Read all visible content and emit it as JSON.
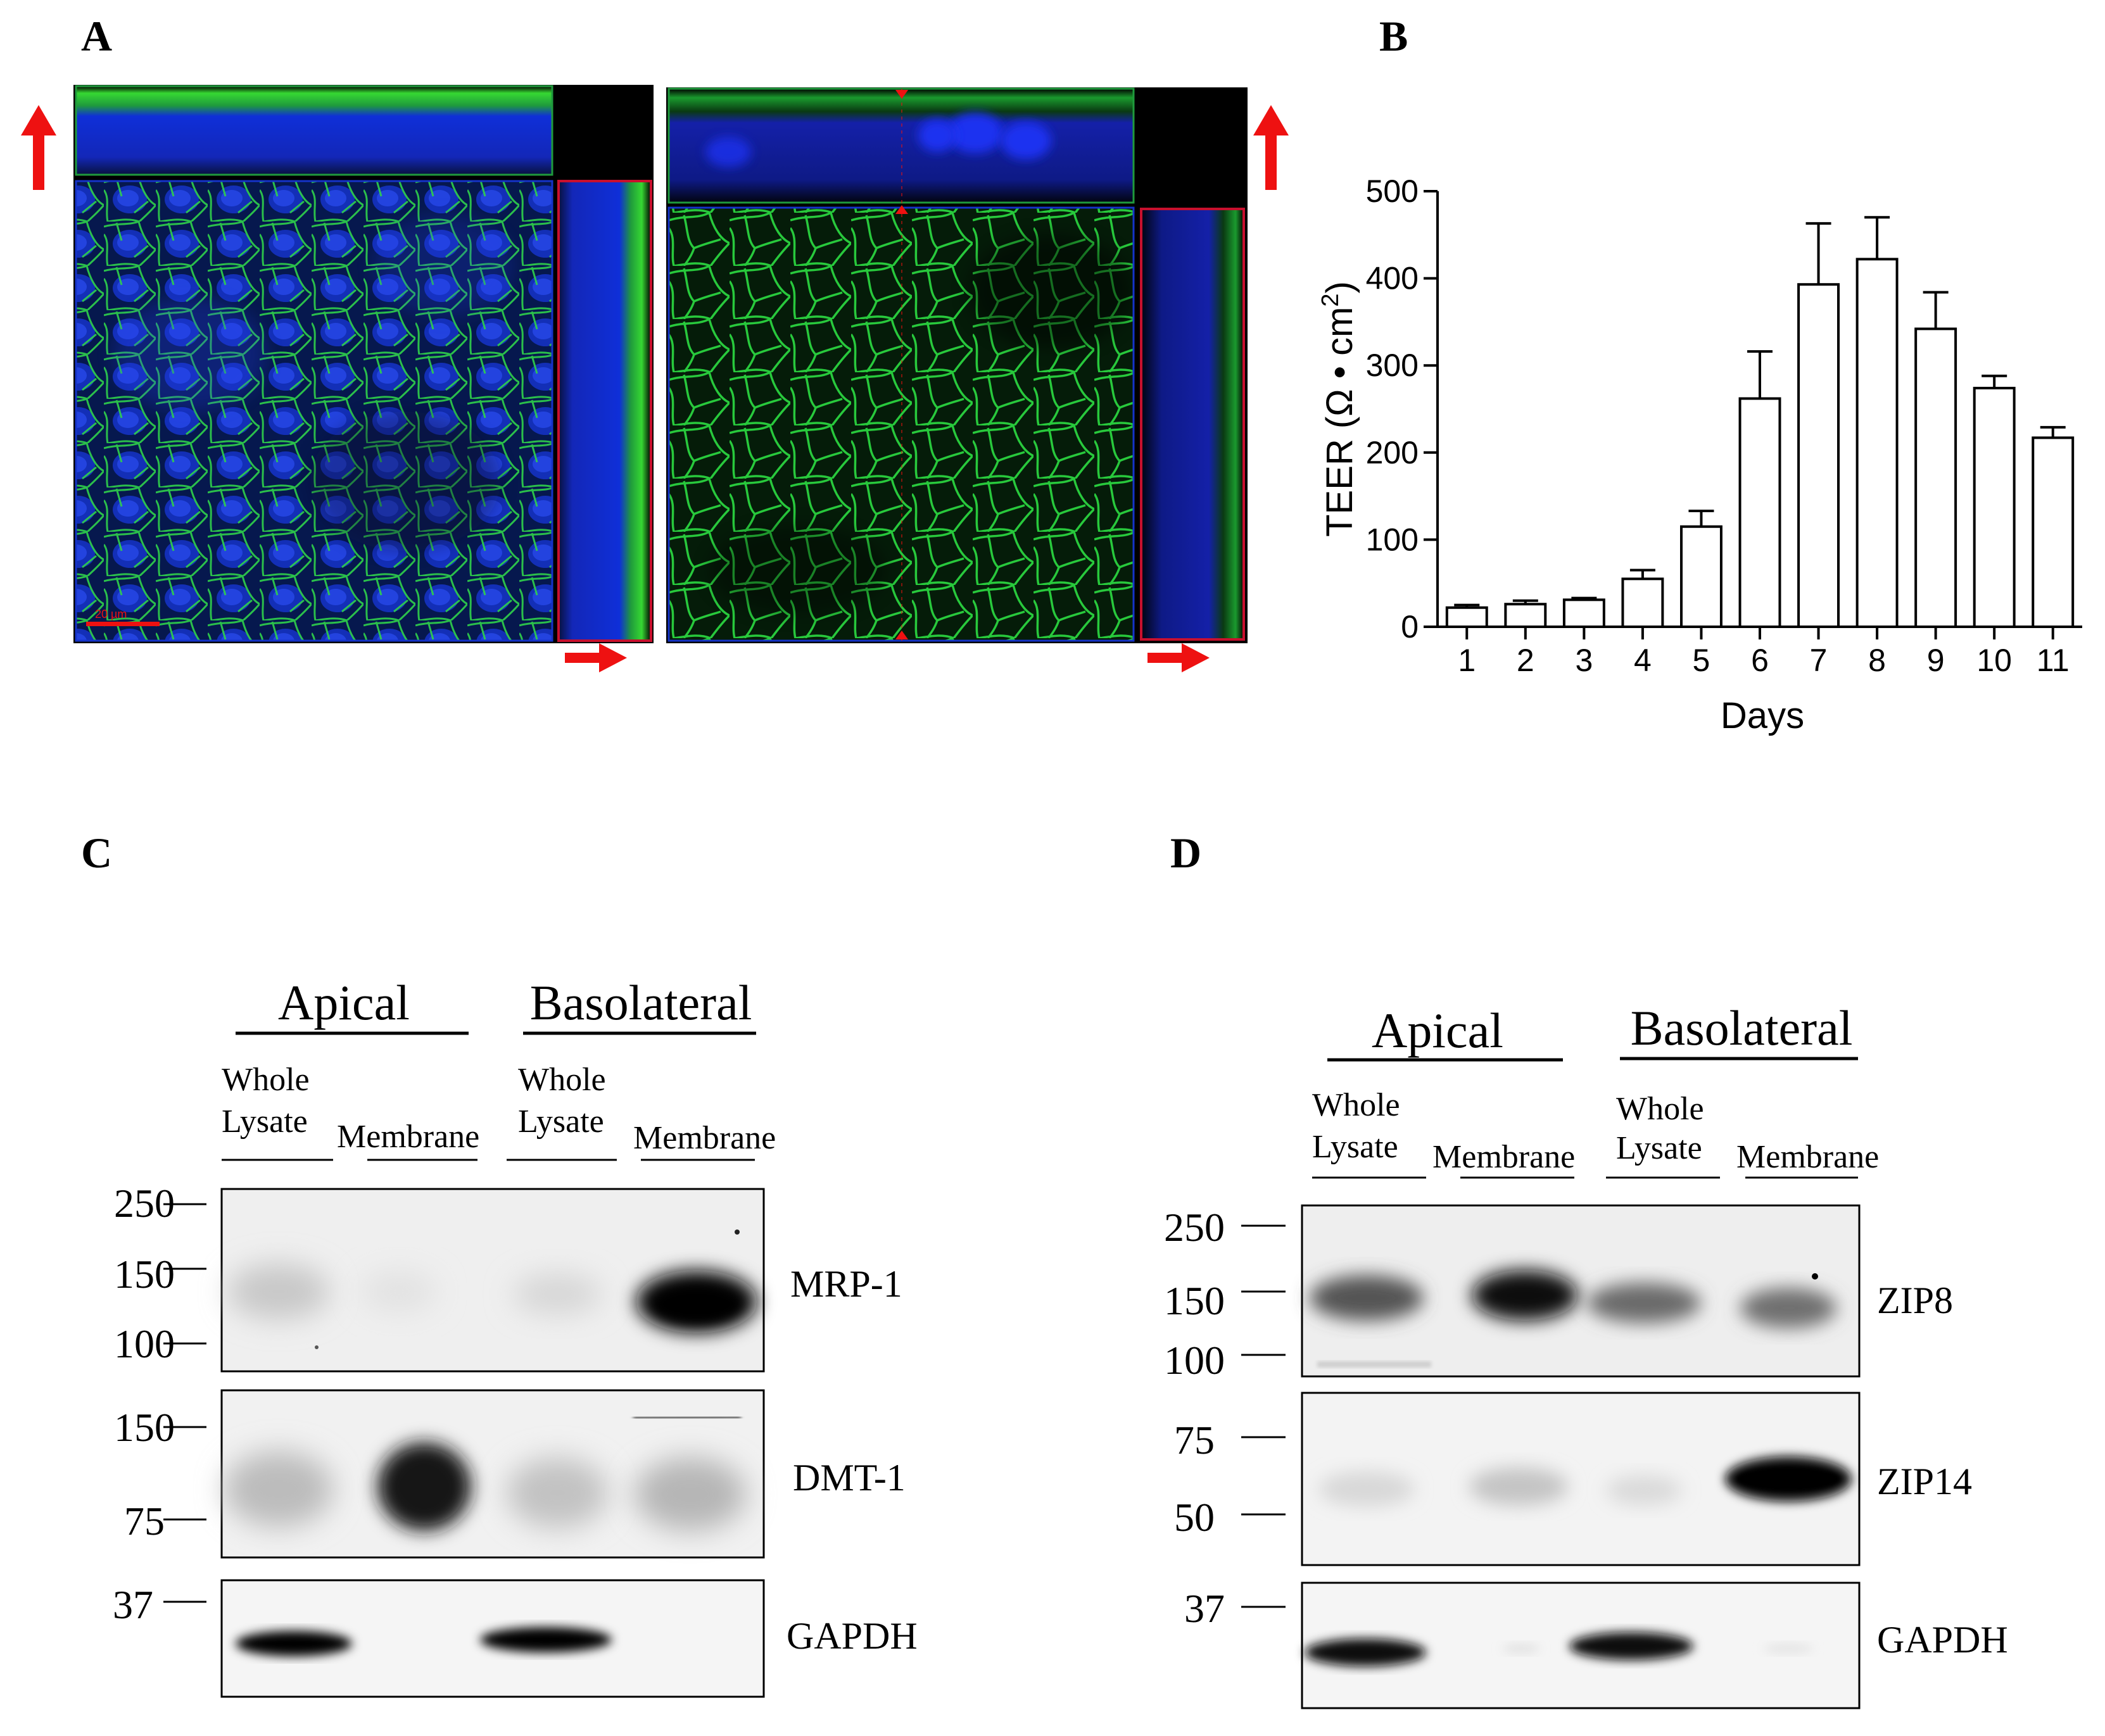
{
  "panels": {
    "a_label": "A",
    "b_label": "B",
    "c_label": "C",
    "d_label": "D"
  },
  "microscopy": {
    "scale_bar_text": "20 µm",
    "colors": {
      "nuclei": "#1530d8",
      "membrane": "#26c03a",
      "arrow": "#ee1111",
      "frame": "#c8102e"
    }
  },
  "chart_data": {
    "type": "bar",
    "xlabel": "Days",
    "ylabel": "TEER (Ω • cm²)",
    "ylabel_parts": [
      "TEER (Ω • cm",
      "2",
      ")"
    ],
    "ylim": [
      0,
      500
    ],
    "yticks": [
      0,
      100,
      200,
      300,
      400,
      500
    ],
    "categories": [
      "1",
      "2",
      "3",
      "4",
      "5",
      "6",
      "7",
      "8",
      "9",
      "10",
      "11"
    ],
    "values": [
      22,
      26,
      31,
      55,
      115,
      262,
      393,
      422,
      342,
      274,
      217
    ],
    "errors": [
      3,
      4,
      2,
      10,
      18,
      54,
      70,
      48,
      42,
      14,
      12
    ],
    "grid": false,
    "legend": "none"
  },
  "blot_c": {
    "group_apical": "Apical",
    "group_basolateral": "Basolateral",
    "lanes": [
      {
        "line1": "Whole",
        "line2": "Lysate"
      },
      {
        "line1": "",
        "line2": "Membrane"
      },
      {
        "line1": "Whole",
        "line2": "Lysate"
      },
      {
        "line1": "",
        "line2": "Membrane"
      }
    ],
    "strips": [
      {
        "name": "MRP-1",
        "markers": [
          "250",
          "150",
          "100"
        ]
      },
      {
        "name": "DMT-1",
        "markers": [
          "150",
          "75"
        ]
      },
      {
        "name": "GAPDH",
        "markers": [
          "37"
        ]
      }
    ]
  },
  "blot_d": {
    "group_apical": "Apical",
    "group_basolateral": "Basolateral",
    "lanes": [
      {
        "line1": "Whole",
        "line2": "Lysate"
      },
      {
        "line1": "",
        "line2": "Membrane"
      },
      {
        "line1": "Whole",
        "line2": "Lysate"
      },
      {
        "line1": "",
        "line2": "Membrane"
      }
    ],
    "strips": [
      {
        "name": "ZIP8",
        "markers": [
          "250",
          "150",
          "100"
        ]
      },
      {
        "name": "ZIP14",
        "markers": [
          "75",
          "50"
        ]
      },
      {
        "name": "GAPDH",
        "markers": [
          "37"
        ]
      }
    ]
  }
}
